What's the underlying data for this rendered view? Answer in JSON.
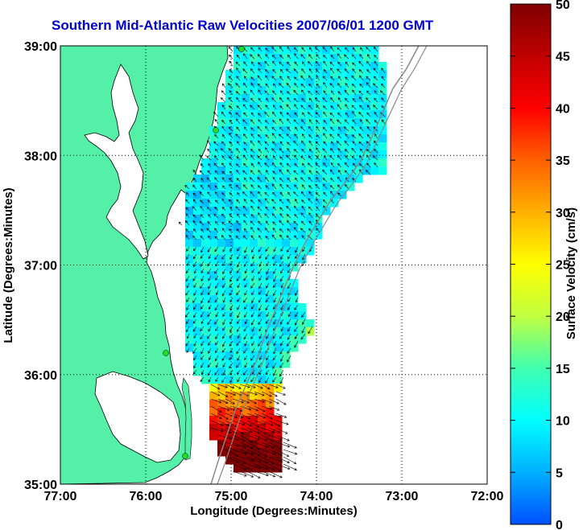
{
  "title": "Southern Mid-Atlantic Raw Velocities 2007/06/01 1200 GMT",
  "title_color": "#0000cc",
  "map": {
    "x_label": "Longitude (Degrees:Minutes)",
    "y_label": "Latitude (Degrees:Minutes)",
    "x_ticks": [
      "77:00",
      "76:00",
      "75:00",
      "74:00",
      "73:00",
      "72:00"
    ],
    "y_ticks": [
      "39:00",
      "38:00",
      "37:00",
      "36:00",
      "35:00"
    ],
    "x_range": [
      -77,
      -72
    ],
    "y_range": [
      35,
      39
    ],
    "land_color": "#55f0a8",
    "station_color": "#22dd22"
  },
  "colorbar": {
    "label": "Surface Velocity (cm/s)",
    "ticks": [
      "0",
      "5",
      "10",
      "15",
      "20",
      "25",
      "30",
      "35",
      "40",
      "45",
      "50"
    ],
    "range": [
      0,
      50
    ],
    "colors": [
      "#0050ff",
      "#00b0ff",
      "#00ffff",
      "#40ffb0",
      "#c0ff40",
      "#ffff00",
      "#ffb000",
      "#ff6000",
      "#ff0000",
      "#c00000",
      "#800000"
    ]
  }
}
